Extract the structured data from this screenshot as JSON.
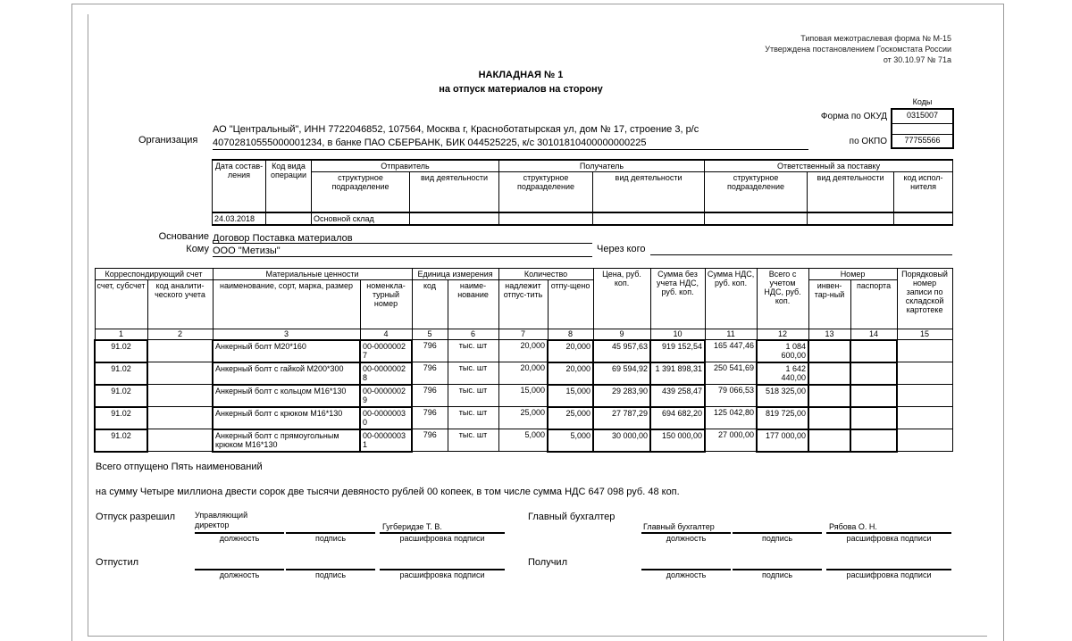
{
  "header": {
    "form_note": [
      "Типовая межотраслевая форма № М-15",
      "Утверждена постановлением Госкомстата России",
      "от 30.10.97 № 71а"
    ],
    "title": "НАКЛАДНАЯ № 1",
    "subtitle": "на отпуск материалов на сторону"
  },
  "codes": {
    "header": "Коды",
    "okud_label": "Форма по ОКУД",
    "okud": "0315007",
    "okpo_label": "по ОКПО",
    "okpo": "77755566"
  },
  "organization": {
    "label": "Организация",
    "lines": [
      "АО \"Центральный\", ИНН 7722046852, 107564, Москва г, Красноботатырская ул, дом № 17, строение 3, р/с",
      "40702810555000001234, в банке ПАО СБЕРБАНК, БИК 044525225, к/с 30101810400000000225"
    ]
  },
  "shipment_table": {
    "head1": [
      "Дата состав-ления",
      "Код вида операции",
      "Отправитель",
      "Получатель",
      "Ответственный за поставку"
    ],
    "head2": [
      "структурное подразделение",
      "вид деятельности",
      "структурное подразделение",
      "вид деятельности",
      "структурное подразделение",
      "вид деятельности",
      "код испол-нителя"
    ],
    "row": [
      "24.03.2018",
      null,
      "Основной склад",
      null,
      null,
      null,
      null,
      null,
      null
    ]
  },
  "basis": {
    "label": "Основание",
    "value": "Договор Поставка материалов"
  },
  "recipient": {
    "label": "Кому",
    "value": "ООО \"Метизы\""
  },
  "via": {
    "label": "Через кого"
  },
  "main_table": {
    "head1": [
      "Корреспондирующий счет",
      "Материальные ценности",
      "Единица измерения",
      "Количество",
      "Цена, руб. коп.",
      "Сумма без учета НДС, руб. коп.",
      "Сумма НДС, руб. коп.",
      "Всего с учетом НДС, руб. коп.",
      "Номер",
      "Порядковый номер записи по складской картотеке"
    ],
    "head2": [
      "счет, субсчет",
      "код аналити-ческого учета",
      "наименование, сорт, марка, размер",
      "номенкла-турный номер",
      "код",
      "наиме-нование",
      "надлежит отпус-тить",
      "отпу-щено",
      "инвен-тар-ный",
      "паспорта"
    ],
    "numbers": [
      1,
      2,
      3,
      4,
      5,
      6,
      7,
      8,
      9,
      10,
      11,
      12,
      13,
      14,
      15
    ],
    "rows": [
      [
        "91.02",
        null,
        "Анкерный болт М20*160",
        "00-00000027",
        "796",
        "тыс. шт",
        "20,000",
        "20,000",
        "45 957,63",
        "919 152,54",
        "165 447,46",
        "1 084 600,00",
        null,
        null,
        null
      ],
      [
        "91.02",
        null,
        "Анкерный болт с гайкой М200*300",
        "00-00000028",
        "796",
        "тыс. шт",
        "20,000",
        "20,000",
        "69 594,92",
        "1 391 898,31",
        "250 541,69",
        "1 642 440,00",
        null,
        null,
        null
      ],
      [
        "91.02",
        null,
        "Анкерный болт с кольцом М16*130",
        "00-00000029",
        "796",
        "тыс. шт",
        "15,000",
        "15,000",
        "29 283,90",
        "439 258,47",
        "79 066,53",
        "518 325,00",
        null,
        null,
        null
      ],
      [
        "91.02",
        null,
        "Анкерный болт с крюком М16*130",
        "00-00000030",
        "796",
        "тыс. шт",
        "25,000",
        "25,000",
        "27 787,29",
        "694 682,20",
        "125 042,80",
        "819 725,00",
        null,
        null,
        null
      ],
      [
        "91.02",
        null,
        "Анкерный болт с прямоугольным крюком М16*130",
        "00-00000031",
        "796",
        "тыс. шт",
        "5,000",
        "5,000",
        "30 000,00",
        "150 000,00",
        "27 000,00",
        "177 000,00",
        null,
        null,
        null
      ]
    ]
  },
  "summary": {
    "count_line": "Всего отпущено Пять  наименований",
    "sum_line": "на сумму Четыре миллиона двести сорок две тысячи девяносто рублей 00 копеек, в том числе сумма НДС 647 098 руб. 48 коп."
  },
  "signatures": {
    "captions": [
      "должность",
      "подпись",
      "расшифровка подписи"
    ],
    "released_by": {
      "label": "Отпуск разрешил",
      "position": "Управляющий директор",
      "name": "Гугберидзе Т. В."
    },
    "chief_accountant": {
      "label": "Главный бухгалтер",
      "position": "Главный бухгалтер",
      "name": "Рябова О. Н."
    },
    "shipped_by": {
      "label": "Отпустил"
    },
    "received_by": {
      "label": "Получил"
    }
  }
}
